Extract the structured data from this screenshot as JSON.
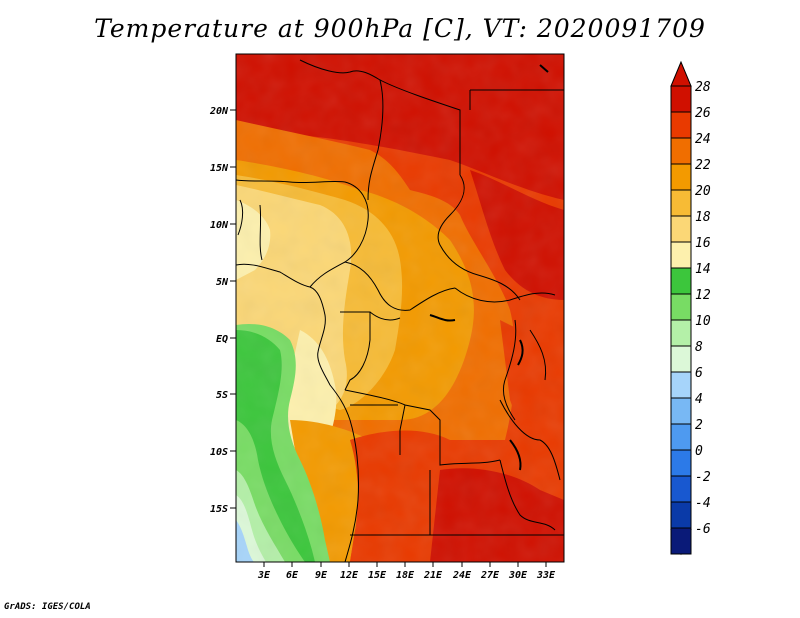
{
  "title": "Temperature at 900hPa [C], VT: 2020091709",
  "credit": "GrADS: IGES/COLA",
  "map": {
    "lat_labels": [
      "20N",
      "15N",
      "10N",
      "5N",
      "EQ",
      "5S",
      "10S",
      "15S"
    ],
    "lon_labels": [
      "3E",
      "6E",
      "9E",
      "12E",
      "15E",
      "18E",
      "21E",
      "24E",
      "27E",
      "30E",
      "33E"
    ]
  },
  "colorbar": {
    "labels": [
      "28",
      "26",
      "24",
      "22",
      "20",
      "18",
      "16",
      "14",
      "12",
      "10",
      "8",
      "6",
      "4",
      "2",
      "0",
      "-2",
      "-4",
      "-6"
    ],
    "colors": [
      "#d01000",
      "#e93a00",
      "#f06e00",
      "#f39a00",
      "#f7bb35",
      "#fbd776",
      "#fdf0ad",
      "#3cc63c",
      "#78dc64",
      "#b4f0a8",
      "#dcf8d8",
      "#a6d4fa",
      "#78b8f4",
      "#4e9af0",
      "#2c7ae8",
      "#1858d0",
      "#0a3aa8",
      "#0a1a78"
    ],
    "over_color": "#d01000",
    "under_color": "#d8d8f8"
  }
}
